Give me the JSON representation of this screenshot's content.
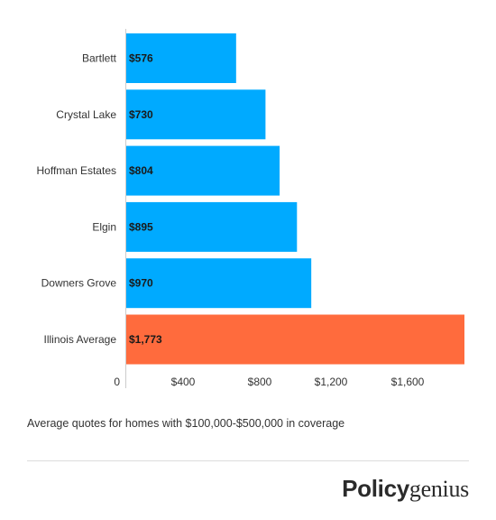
{
  "chart_data": {
    "type": "bar",
    "orientation": "horizontal",
    "categories": [
      "Bartlett",
      "Crystal Lake",
      "Hoffman Estates",
      "Elgin",
      "Downers Grove",
      "Illinois Average"
    ],
    "values": [
      576,
      730,
      804,
      895,
      970,
      1773
    ],
    "value_labels": [
      "$576",
      "$730",
      "$804",
      "$895",
      "$970",
      "$1,773"
    ],
    "colors": [
      "#00aaff",
      "#00aaff",
      "#00aaff",
      "#00aaff",
      "#00aaff",
      "#ff6b3d"
    ],
    "x_ticks": [
      0,
      400,
      800,
      1200,
      1600
    ],
    "x_tick_labels": [
      "0",
      "$400",
      "$800",
      "$1,200",
      "$1,600"
    ],
    "xlim": [
      0,
      1773
    ],
    "title": "",
    "xlabel": "",
    "ylabel": "",
    "grid": false
  },
  "caption": "Average quotes for homes with $100,000-$500,000 in coverage",
  "logo": {
    "bold": "Policy",
    "light": "genius"
  }
}
